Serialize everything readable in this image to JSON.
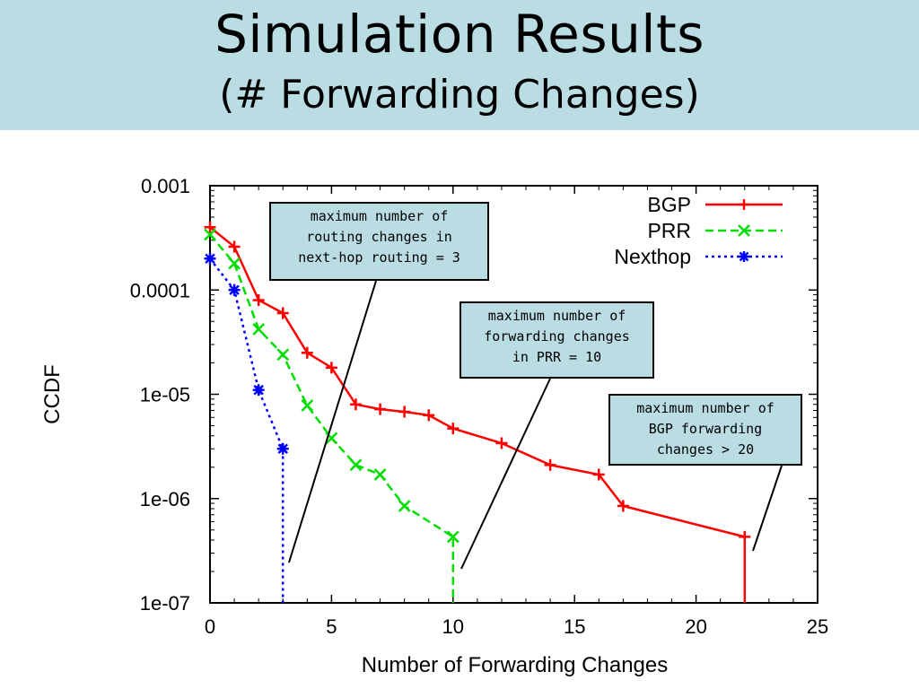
{
  "header": {
    "title": "Simulation Results",
    "subtitle": "(# Forwarding Changes)"
  },
  "callouts": [
    {
      "lines": [
        "maximum number of",
        "routing changes in",
        "next-hop routing = 3"
      ]
    },
    {
      "lines": [
        "maximum number of",
        "forwarding changes",
        "in PRR = 10"
      ]
    },
    {
      "lines": [
        "maximum number of",
        "BGP forwarding",
        "changes > 20"
      ]
    }
  ],
  "colors": {
    "title_band": "#b9dde3",
    "callout_fill": "#b9dde3",
    "BGP": "#ff0000",
    "PRR": "#00dd00",
    "Nexthop": "#0000ff"
  },
  "chart_data": {
    "type": "line",
    "xlabel": "Number of Forwarding Changes",
    "ylabel": "CCDF",
    "xlim": [
      0,
      25
    ],
    "ylim": [
      1e-07,
      0.001
    ],
    "yscale": "log",
    "grid": false,
    "legend_position": "top-right",
    "x_ticks": [
      0,
      5,
      10,
      15,
      20,
      25
    ],
    "x_tick_labels": [
      "0",
      "5",
      "10",
      "15",
      "20",
      "25"
    ],
    "y_ticks": [
      0.001,
      0.0001,
      1e-05,
      1e-06,
      1e-07
    ],
    "y_tick_labels": [
      "0.001",
      "0.0001",
      "1e-05",
      "1e-06",
      "1e-07"
    ],
    "series": [
      {
        "name": "BGP",
        "color": "#ff0000",
        "dash": "solid",
        "marker": "plus",
        "x": [
          0,
          1,
          2,
          3,
          4,
          5,
          6,
          7,
          8,
          9,
          10,
          12,
          14,
          16,
          17,
          22
        ],
        "y": [
          0.0004,
          0.00026,
          8e-05,
          6e-05,
          2.5e-05,
          1.8e-05,
          8e-06,
          7.2e-06,
          6.8e-06,
          6.3e-06,
          4.7e-06,
          3.4e-06,
          2.1e-06,
          1.7e-06,
          8.5e-07,
          4.3e-07
        ],
        "drop_to_min_at": 22
      },
      {
        "name": "PRR",
        "color": "#00dd00",
        "dash": "dashed",
        "marker": "x",
        "x": [
          0,
          1,
          2,
          3,
          4,
          5,
          6,
          7,
          8,
          10
        ],
        "y": [
          0.00034,
          0.00018,
          4.2e-05,
          2.4e-05,
          7.8e-06,
          3.8e-06,
          2.1e-06,
          1.7e-06,
          8.5e-07,
          4.3e-07
        ],
        "drop_to_min_at": 10
      },
      {
        "name": "Nexthop",
        "color": "#0000ff",
        "dash": "dotted",
        "marker": "star",
        "x": [
          0,
          1,
          2,
          3
        ],
        "y": [
          0.0002,
          0.0001,
          1.1e-05,
          3e-06
        ],
        "drop_to_min_at": 3
      }
    ]
  }
}
